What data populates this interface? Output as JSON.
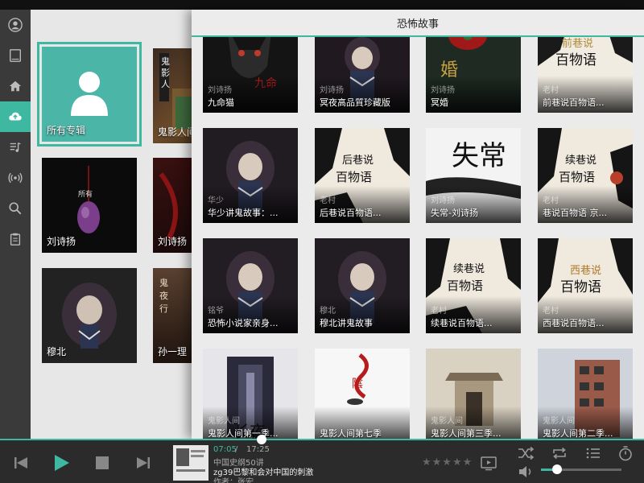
{
  "panel": {
    "title": "恐怖故事"
  },
  "background": {
    "all_albums_label": "所有专辑",
    "cards": [
      {
        "label": "鬼影人间"
      },
      {
        "label": "刘诗扬"
      },
      {
        "label": "刘诗扬"
      },
      {
        "label": "穆北"
      },
      {
        "label": "孙一理"
      }
    ]
  },
  "tiles": [
    {
      "sub": "刘诗扬",
      "title": "九命猫"
    },
    {
      "sub": "刘诗扬",
      "title": "冥夜高品質珍藏版"
    },
    {
      "sub": "刘诗扬",
      "title": "冥婚"
    },
    {
      "sub": "老村",
      "title": "前巷说百物语..."
    },
    {
      "sub": "华少",
      "title": "华少讲鬼故事：..."
    },
    {
      "sub": "老村",
      "title": "后巷说百物语..."
    },
    {
      "sub": "刘诗扬",
      "title": "失常-刘诗扬"
    },
    {
      "sub": "老村",
      "title": "巷说百物语 京..."
    },
    {
      "sub": "铭爷",
      "title": "恐怖小说家亲身..."
    },
    {
      "sub": "穆北",
      "title": "穆北讲鬼故事"
    },
    {
      "sub": "老村",
      "title": "续巷说百物语..."
    },
    {
      "sub": "老村",
      "title": "西巷说百物语..."
    },
    {
      "sub": "鬼影人间",
      "title": "鬼影人间第一季..."
    },
    {
      "sub": "",
      "title": "鬼影人间第七季"
    },
    {
      "sub": "鬼影人间",
      "title": "鬼影人间第三季..."
    },
    {
      "sub": "鬼影人间",
      "title": "鬼影人间第二季..."
    }
  ],
  "player": {
    "time_now": "07:05",
    "time_sep": "/",
    "time_total": "17:25",
    "progress": 0.406,
    "album": "中国史纲50讲",
    "title": "zg39巴黎和会对中国的刺激",
    "artist": "作者：张宏",
    "rating": "★★★★★",
    "volume": 0.2
  },
  "colors": {
    "accent": "#3fb8a2",
    "rail": "#3a3a3a",
    "player": "#2b2b2b"
  },
  "icons": {
    "rail": [
      "user-icon",
      "tablet-icon",
      "home-icon",
      "cloud-upload-icon",
      "music-library-icon",
      "radio-icon",
      "search-icon",
      "clipboard-icon"
    ],
    "player": [
      "previous-icon",
      "play-icon",
      "stop-icon",
      "next-icon",
      "screen-icon",
      "shuffle-icon",
      "repeat-icon",
      "playlist-icon",
      "timer-icon",
      "volume-icon"
    ]
  }
}
